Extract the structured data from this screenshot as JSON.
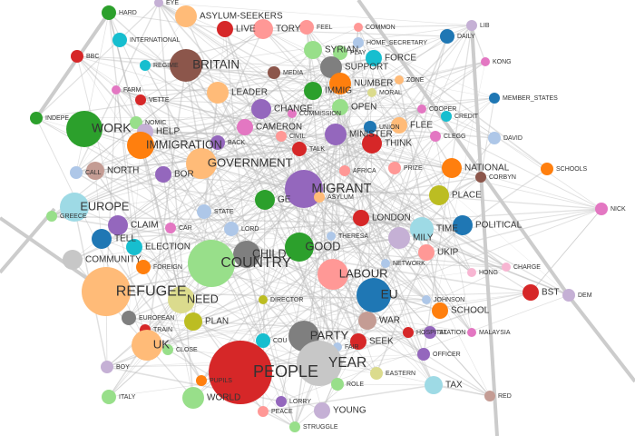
{
  "nodes": [
    "HARD",
    "EYE",
    "ASYLUM-SEEKERS",
    "LIVE",
    "TORY",
    "FEEL",
    "COMMON",
    "LIB",
    "DAILY",
    "INTERNATIONAL",
    "SYRIAN",
    "HOME_SECRETARY",
    "BBC",
    "BRITAIN",
    "PLAY",
    "FORCE",
    "REGIME",
    "KONG",
    "MEDIA",
    "SUPPORT",
    "NUMBER",
    "ZONE",
    "FARM",
    "LEADER",
    "IMMIG",
    "MORAL",
    "MEMBER_STATES",
    "VETTE",
    "INDEPE",
    "CHANGE",
    "OPEN",
    "COOPER",
    "CREDIT",
    "WORK",
    "NOMIC",
    "HELP",
    "COMMISSION",
    "CAMERON",
    "UNION",
    "FLEE",
    "CLEGG",
    "DAVID",
    "CIVIL",
    "MINISTER",
    "IMMIGRATION",
    "BACK",
    "TALK",
    "THINK",
    "NORTH",
    "CALL",
    "GOVERNMENT",
    "BOR",
    "AFRICA",
    "PRIZE",
    "NATIONAL",
    "CORBYN",
    "SCHOOLS",
    "MIGRANT",
    "ASYLUM",
    "PLACE",
    "EUROPE",
    "STATE",
    "GE",
    "NICK",
    "GREECE",
    "CLAIM",
    "CAR",
    "LORD",
    "LONDON",
    "TIME",
    "POLITICAL",
    "MILY",
    "TELL",
    "CHILD",
    "GOOD",
    "THERESA",
    "ELECTION",
    "UKIP",
    "COUNTRY",
    "COMMUNITY",
    "FOREIGN",
    "NETWORK",
    "HONG",
    "CHARGE",
    "LABOUR",
    "EU",
    "REFUGEE",
    "DIRECTOR",
    "NEED",
    "JOHNSON",
    "BST",
    "DEM",
    "SCHOOL",
    "EUROPEAN",
    "PLAN",
    "WAR",
    "TRAIN",
    "STATION",
    "HOSPITAL",
    "MALAYSIA",
    "PARTY",
    "SEEK",
    "COU",
    "UK",
    "CLOSE",
    "OFFICER",
    "FAIR",
    "PEOPLE",
    "YEAR",
    "EASTERN",
    "BOY",
    "PUPILS",
    "ROLE",
    "TAX",
    "ITALY",
    "WORLD",
    "RED",
    "LORRY",
    "PEACE",
    "YOUNG",
    "STRUGGLE"
  ]
}
